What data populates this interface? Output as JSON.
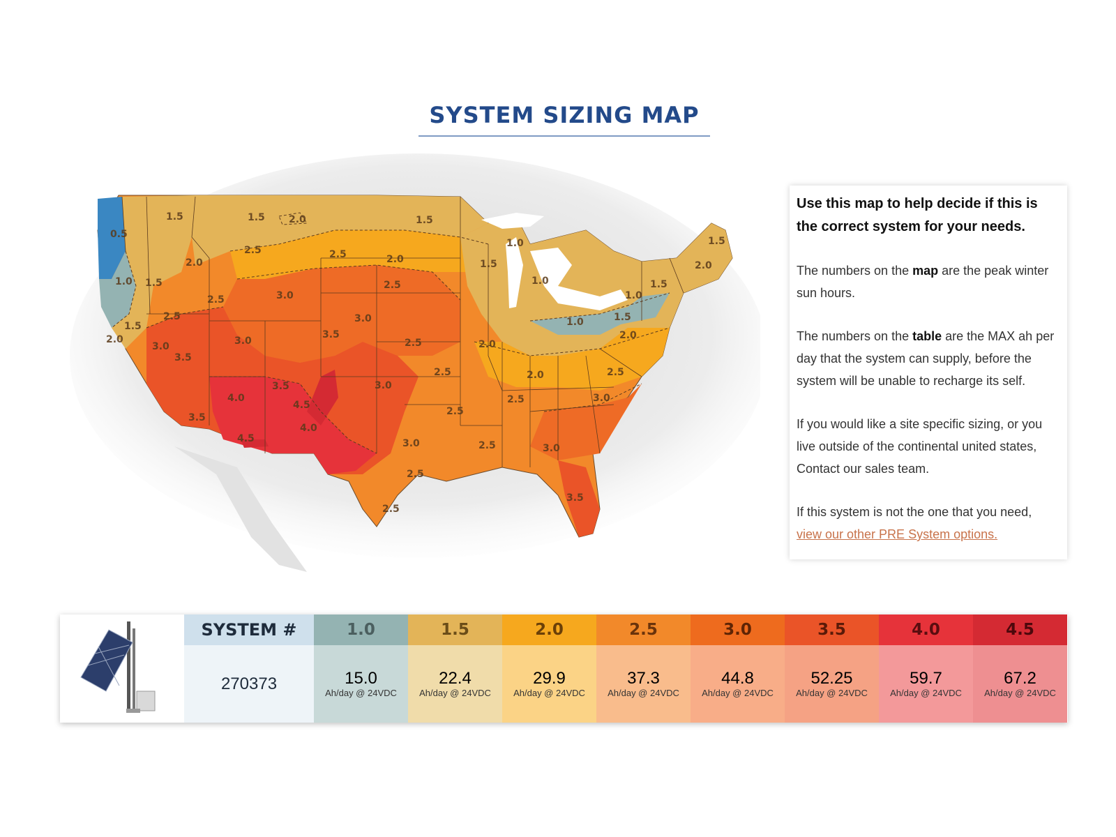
{
  "title": "SYSTEM SIZING MAP",
  "map": {
    "labels": [
      "0.5",
      "1.0",
      "1.5",
      "1.5",
      "1.5",
      "2.0",
      "2.0",
      "2.5",
      "2.5",
      "3.0",
      "2.0",
      "1.5",
      "2.5",
      "2.5",
      "3.0",
      "2.5",
      "2.0",
      "1.5",
      "3.0",
      "3.5",
      "3.0",
      "3.5",
      "2.5",
      "1.0",
      "1.5",
      "1.0",
      "1.5",
      "2.0",
      "1.5",
      "1.0",
      "1.0",
      "1.5",
      "2.0",
      "2.0",
      "2.0",
      "2.5",
      "2.5",
      "3.5",
      "4.0",
      "4.5",
      "4.0",
      "4.5",
      "3.0",
      "3.5",
      "3.0",
      "2.5",
      "2.5",
      "2.5",
      "3.0",
      "3.0",
      "2.5",
      "2.5",
      "3.5"
    ],
    "zone_colors": {
      "z05": "#3a87c2",
      "z10": "#94b3b2",
      "z15": "#e3b458",
      "z20": "#f6a81e",
      "z25": "#f2892a",
      "z30": "#ee6b26",
      "z35": "#ea5428",
      "z40": "#e6333a",
      "z45": "#d42a33"
    }
  },
  "info": {
    "heading": "Use this map to help decide if this is the correct system for your needs.",
    "p1_a": "The numbers on the ",
    "p1_b": "map",
    "p1_c": " are the peak winter sun hours.",
    "p2_a": "The numbers on the ",
    "p2_b": "table",
    "p2_c": " are the MAX ah per day that the system can supply, before the system will be unable to recharge its self.",
    "p3": "If you would like a site specific sizing, or you live outside of the continental united states, Contact our sales team.",
    "p4": "If this system is not the one that you need,",
    "link": "view our other PRE System options."
  },
  "table": {
    "system_header": "SYSTEM #",
    "system_number": "270373",
    "columns": [
      {
        "header": "1.0",
        "value": "15.0",
        "unit": "Ah/day @ 24VDC",
        "head_bg": "#94b3b2",
        "head_fg": "#4b5f5f",
        "body_bg": "#c8d9d8"
      },
      {
        "header": "1.5",
        "value": "22.4",
        "unit": "Ah/day @ 24VDC",
        "head_bg": "#e3b458",
        "head_fg": "#6b4d18",
        "body_bg": "#f0dcaa"
      },
      {
        "header": "2.0",
        "value": "29.9",
        "unit": "Ah/day @  24VDC",
        "head_bg": "#f6a81e",
        "head_fg": "#6b4008",
        "body_bg": "#fbd386"
      },
      {
        "header": "2.5",
        "value": "37.3",
        "unit": "Ah/day @ 24VDC",
        "head_bg": "#f2892a",
        "head_fg": "#6a330b",
        "body_bg": "#f9bc8c"
      },
      {
        "header": "3.0",
        "value": "44.8",
        "unit": "Ah/day @ 24VDC",
        "head_bg": "#ee6b1e",
        "head_fg": "#5e2405",
        "body_bg": "#f8ad88"
      },
      {
        "header": "3.5",
        "value": "52.25",
        "unit": "Ah/day @ 24VDC",
        "head_bg": "#ea5428",
        "head_fg": "#5a1a08",
        "body_bg": "#f5a284"
      },
      {
        "header": "4.0",
        "value": "59.7",
        "unit": "Ah/day @ 24VDC",
        "head_bg": "#e6333a",
        "head_fg": "#5a0d10",
        "body_bg": "#f3999a"
      },
      {
        "header": "4.5",
        "value": "67.2",
        "unit": "Ah/day @ 24VDC",
        "head_bg": "#d42a33",
        "head_fg": "#4d080c",
        "body_bg": "#ee8f91"
      }
    ]
  }
}
